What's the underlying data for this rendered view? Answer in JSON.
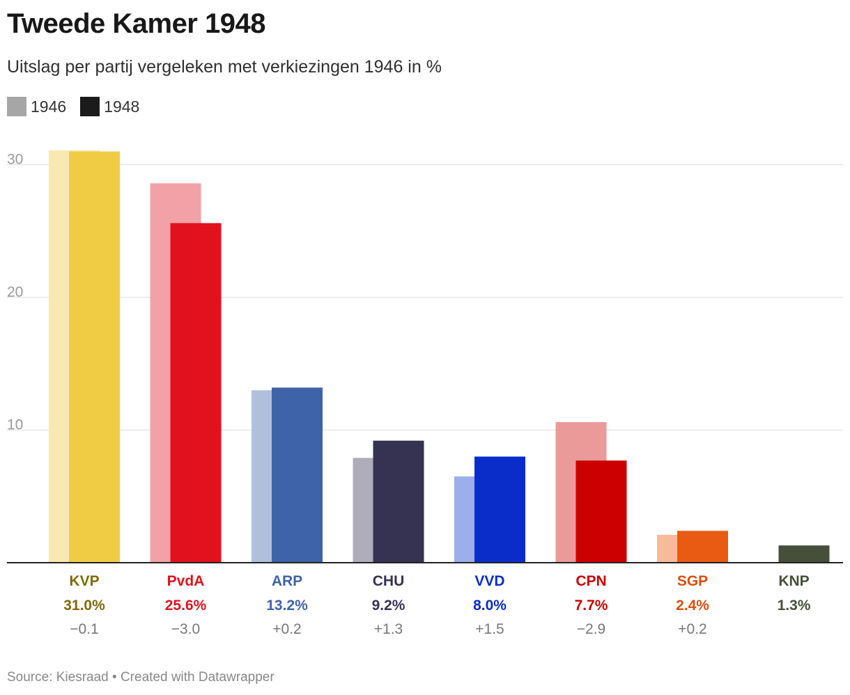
{
  "title": "Tweede Kamer 1948",
  "subtitle": "Uitslag per partij vergeleken met verkiezingen 1946 in %",
  "legend": [
    {
      "label": "1946",
      "color": "#a6a6a6"
    },
    {
      "label": "1948",
      "color": "#1b1b1b"
    }
  ],
  "source": "Source: Kiesraad • Created with Datawrapper",
  "chart_data": {
    "type": "bar",
    "title": "Tweede Kamer 1948",
    "subtitle": "Uitslag per partij vergeleken met verkiezingen 1946 in %",
    "xlabel": "",
    "ylabel": "",
    "ylim": [
      0,
      31.5
    ],
    "yticks": [
      10,
      20,
      30
    ],
    "grid": true,
    "legend_position": "top-left",
    "categories": [
      "KVP",
      "PvdA",
      "ARP",
      "CHU",
      "VVD",
      "CPN",
      "SGP",
      "KNP"
    ],
    "series": [
      {
        "name": "1946",
        "values": [
          31.1,
          28.6,
          13.0,
          7.9,
          6.5,
          10.6,
          2.1,
          null
        ]
      },
      {
        "name": "1948",
        "values": [
          31.0,
          25.6,
          13.2,
          9.2,
          8.0,
          7.7,
          2.4,
          1.3
        ]
      }
    ],
    "value_labels": [
      "31.0%",
      "25.6%",
      "13.2%",
      "9.2%",
      "8.0%",
      "7.7%",
      "2.4%",
      "1.3%"
    ],
    "diff_labels": [
      "−0.1",
      "−3.0",
      "+0.2",
      "+1.3",
      "+1.5",
      "−2.9",
      "+0.2",
      ""
    ],
    "colors_1948": [
      "#f0cc45",
      "#e1121d",
      "#3f63a9",
      "#363252",
      "#0a2dca",
      "#cc0000",
      "#e95b12",
      "#464f3a"
    ],
    "colors_1946": [
      "#f8e9b2",
      "#f2a1a6",
      "#b0c0dc",
      "#afacbb",
      "#9caeec",
      "#eb9a9a",
      "#f7bb9c",
      "#cfd2c8"
    ],
    "label_colors": [
      "#7e6a08",
      "#e1121d",
      "#3f63a9",
      "#363252",
      "#0a2dca",
      "#cc0000",
      "#d9500f",
      "#464f3a"
    ]
  }
}
